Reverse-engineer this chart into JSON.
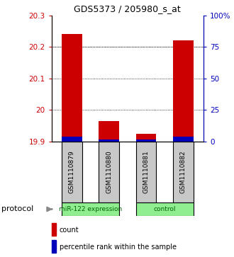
{
  "title": "GDS5373 / 205980_s_at",
  "samples": [
    "GSM1110879",
    "GSM1110880",
    "GSM1110881",
    "GSM1110882"
  ],
  "red_values": [
    20.24,
    19.965,
    19.925,
    20.22
  ],
  "blue_values": [
    3.5,
    1.5,
    1.5,
    3.5
  ],
  "ylim_left": [
    19.9,
    20.3
  ],
  "yticks_left": [
    19.9,
    20.0,
    20.1,
    20.2,
    20.3
  ],
  "ytick_labels_left": [
    "19.9",
    "20",
    "20.1",
    "20.2",
    "20.3"
  ],
  "ylim_right": [
    0,
    100
  ],
  "yticks_right": [
    0,
    25,
    50,
    75,
    100
  ],
  "ytick_labels_right": [
    "0",
    "25",
    "50",
    "75",
    "100%"
  ],
  "bar_width": 0.55,
  "red_color": "#CC0000",
  "blue_color": "#0000BB",
  "left_tick_color": "#CC0000",
  "right_tick_color": "#0000BB",
  "legend_items": [
    "count",
    "percentile rank within the sample"
  ],
  "group_spans": [
    [
      0,
      1,
      "miR-122 expression"
    ],
    [
      2,
      3,
      "control"
    ]
  ],
  "group_bg": "#90EE90",
  "group_text_color": "#006600",
  "sample_bg": "#C8C8C8",
  "protocol_label": "protocol"
}
